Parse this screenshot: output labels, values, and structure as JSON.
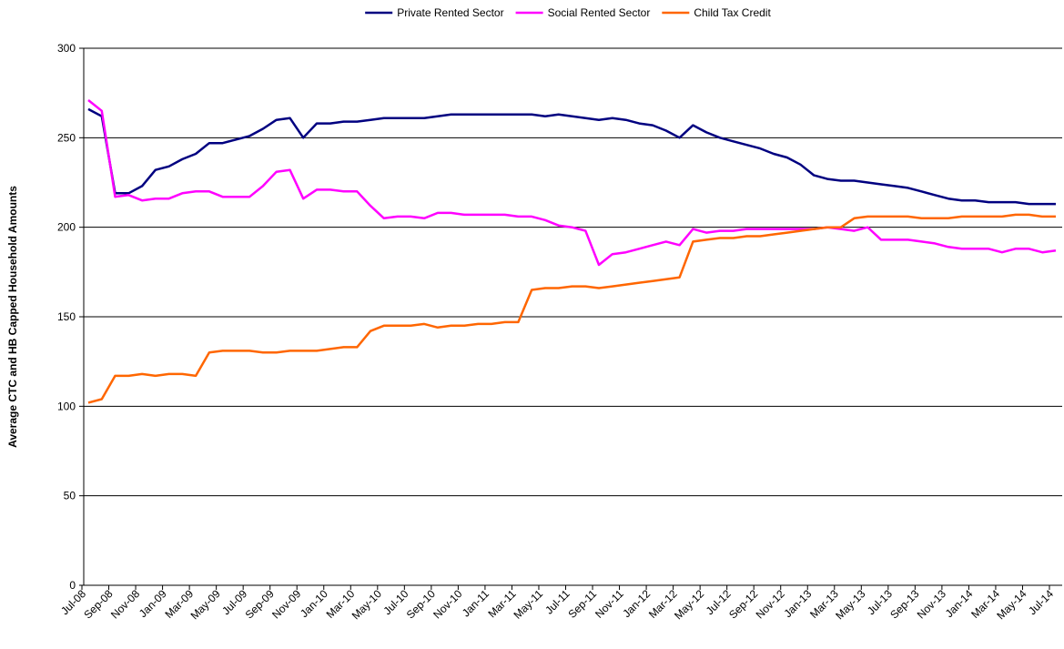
{
  "chart_data": {
    "type": "line",
    "y_label": "Average CTC and HB Capped Household Amounts",
    "categories": [
      "Jul-08",
      null,
      "Sep-08",
      null,
      "Nov-08",
      null,
      "Jan-09",
      null,
      "Mar-09",
      null,
      "May-09",
      null,
      "Jul-09",
      null,
      "Sep-09",
      null,
      "Nov-09",
      null,
      "Jan-10",
      null,
      "Mar-10",
      null,
      "May-10",
      null,
      "Jul-10",
      null,
      "Sep-10",
      null,
      "Nov-10",
      null,
      "Jan-11",
      null,
      "Mar-11",
      null,
      "May-11",
      null,
      "Jul-11",
      null,
      "Sep-11",
      null,
      "Nov-11",
      null,
      "Jan-12",
      null,
      "Mar-12",
      null,
      "May-12",
      null,
      "Jul-12",
      null,
      "Sep-12",
      null,
      "Nov-12",
      null,
      "Jan-13",
      null,
      "Mar-13",
      null,
      "May-13",
      null,
      "Jul-13",
      null,
      "Sep-13",
      null,
      "Nov-13",
      null,
      "Jan-14",
      null,
      "Mar-14",
      null,
      "May-14",
      null,
      "Jul-14"
    ],
    "series": [
      {
        "name": "Private Rented Sector",
        "color": "#000080",
        "values": [
          266,
          262,
          219,
          219,
          223,
          232,
          234,
          238,
          241,
          247,
          247,
          249,
          251,
          255,
          260,
          261,
          250,
          258,
          258,
          259,
          259,
          260,
          261,
          261,
          261,
          261,
          262,
          263,
          263,
          263,
          263,
          263,
          263,
          263,
          262,
          263,
          262,
          261,
          260,
          261,
          260,
          258,
          257,
          254,
          250,
          257,
          253,
          250,
          248,
          246,
          244,
          241,
          239,
          235,
          229,
          227,
          226,
          226,
          225,
          224,
          223,
          222,
          220,
          218,
          216,
          215,
          215,
          214,
          214,
          214,
          213,
          213,
          213
        ]
      },
      {
        "name": "Social Rented Sector",
        "color": "#ff00ff",
        "values": [
          271,
          265,
          217,
          218,
          215,
          216,
          216,
          219,
          220,
          220,
          217,
          217,
          217,
          223,
          231,
          232,
          216,
          221,
          221,
          220,
          220,
          212,
          205,
          206,
          206,
          205,
          208,
          208,
          207,
          207,
          207,
          207,
          206,
          206,
          204,
          201,
          200,
          198,
          179,
          185,
          186,
          188,
          190,
          192,
          190,
          199,
          197,
          198,
          198,
          199,
          199,
          199,
          199,
          199,
          199,
          200,
          199,
          198,
          200,
          193,
          193,
          193,
          192,
          191,
          189,
          188,
          188,
          188,
          186,
          188,
          188,
          186,
          187
        ]
      },
      {
        "name": "Child Tax Credit",
        "color": "#ff6600",
        "values": [
          102,
          104,
          117,
          117,
          118,
          117,
          118,
          118,
          117,
          130,
          131,
          131,
          131,
          130,
          130,
          131,
          131,
          131,
          132,
          133,
          133,
          142,
          145,
          145,
          145,
          146,
          144,
          145,
          145,
          146,
          146,
          147,
          147,
          165,
          166,
          166,
          167,
          167,
          166,
          167,
          168,
          169,
          170,
          171,
          172,
          192,
          193,
          194,
          194,
          195,
          195,
          196,
          197,
          198,
          199,
          200,
          200,
          205,
          206,
          206,
          206,
          206,
          205,
          205,
          205,
          206,
          206,
          206,
          206,
          207,
          207,
          206,
          206
        ]
      }
    ],
    "ylim": [
      0,
      300
    ],
    "yticks": [
      0,
      50,
      100,
      150,
      200,
      250,
      300
    ],
    "grid": true,
    "legend": "top"
  }
}
